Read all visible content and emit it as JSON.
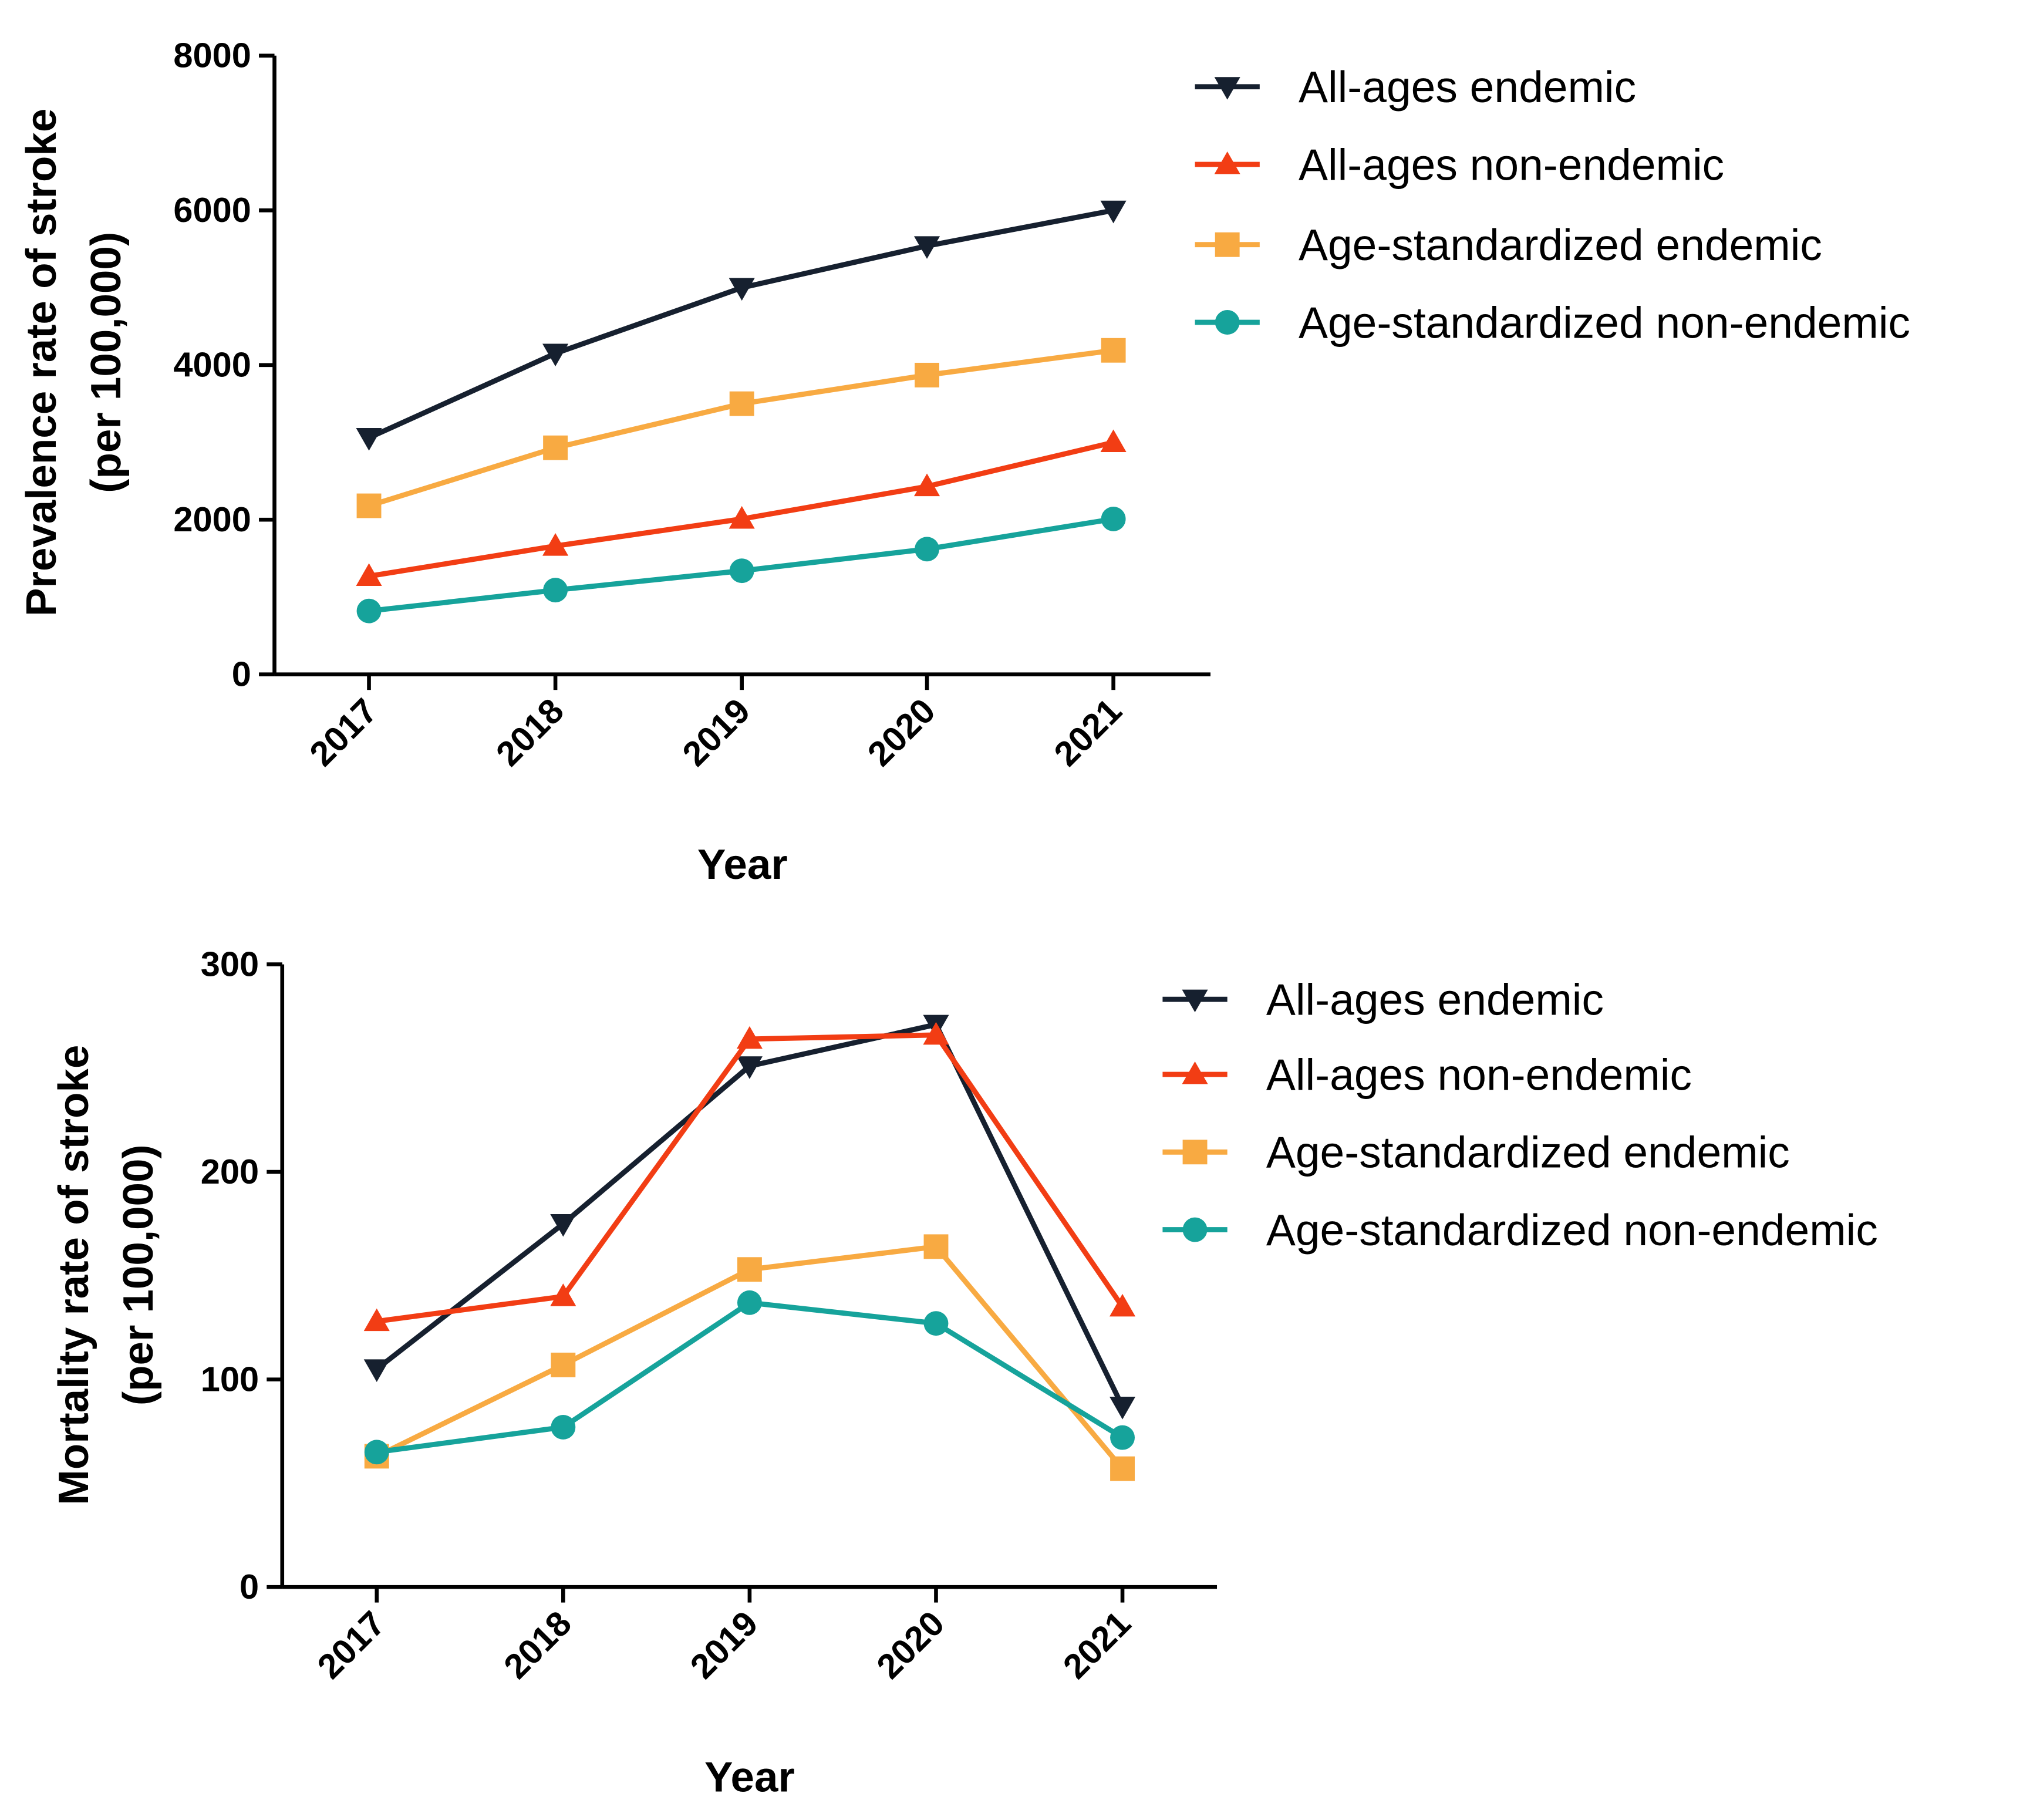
{
  "chart_data": [
    {
      "type": "line",
      "title": "",
      "xlabel": "Year",
      "ylabel": [
        "Prevalence rate of stroke",
        "(per 100,000)"
      ],
      "categories": [
        "2017",
        "2018",
        "2019",
        "2020",
        "2021"
      ],
      "ylim": [
        0,
        8000
      ],
      "yticks": [
        0,
        2000,
        4000,
        6000,
        8000
      ],
      "grid": false,
      "legend": "right",
      "series": [
        {
          "name": "All-ages endemic",
          "marker": "triangle-down",
          "color": "#16202f",
          "values": [
            3060,
            4150,
            5000,
            5540,
            6000
          ]
        },
        {
          "name": "All-ages non-endemic",
          "marker": "triangle-up",
          "color": "#f23d14",
          "values": [
            1270,
            1660,
            2010,
            2430,
            3000
          ]
        },
        {
          "name": "Age-standardized endemic",
          "marker": "square",
          "color": "#f8aa42",
          "values": [
            2180,
            2930,
            3500,
            3870,
            4190
          ]
        },
        {
          "name": "Age-standardized non-endemic",
          "marker": "circle",
          "color": "#16a39b",
          "values": [
            820,
            1090,
            1340,
            1620,
            2010
          ]
        }
      ]
    },
    {
      "type": "line",
      "title": "",
      "xlabel": "Year",
      "ylabel": [
        "Mortality rate of stroke",
        "(per 100,000)"
      ],
      "categories": [
        "2017",
        "2018",
        "2019",
        "2020",
        "2021"
      ],
      "ylim": [
        0,
        300
      ],
      "yticks": [
        0,
        100,
        200,
        300
      ],
      "grid": false,
      "legend": "right",
      "series": [
        {
          "name": "All-ages endemic",
          "marker": "triangle-down",
          "color": "#16202f",
          "values": [
            105,
            175,
            251,
            271,
            87
          ]
        },
        {
          "name": "All-ages non-endemic",
          "marker": "triangle-up",
          "color": "#f23d14",
          "values": [
            128,
            140,
            264,
            266,
            135
          ]
        },
        {
          "name": "Age-standardized endemic",
          "marker": "square",
          "color": "#f8aa42",
          "values": [
            63,
            107,
            153,
            164,
            57
          ]
        },
        {
          "name": "Age-standardized non-endemic",
          "marker": "circle",
          "color": "#16a39b",
          "values": [
            65,
            77,
            137,
            127,
            72
          ]
        }
      ]
    }
  ]
}
